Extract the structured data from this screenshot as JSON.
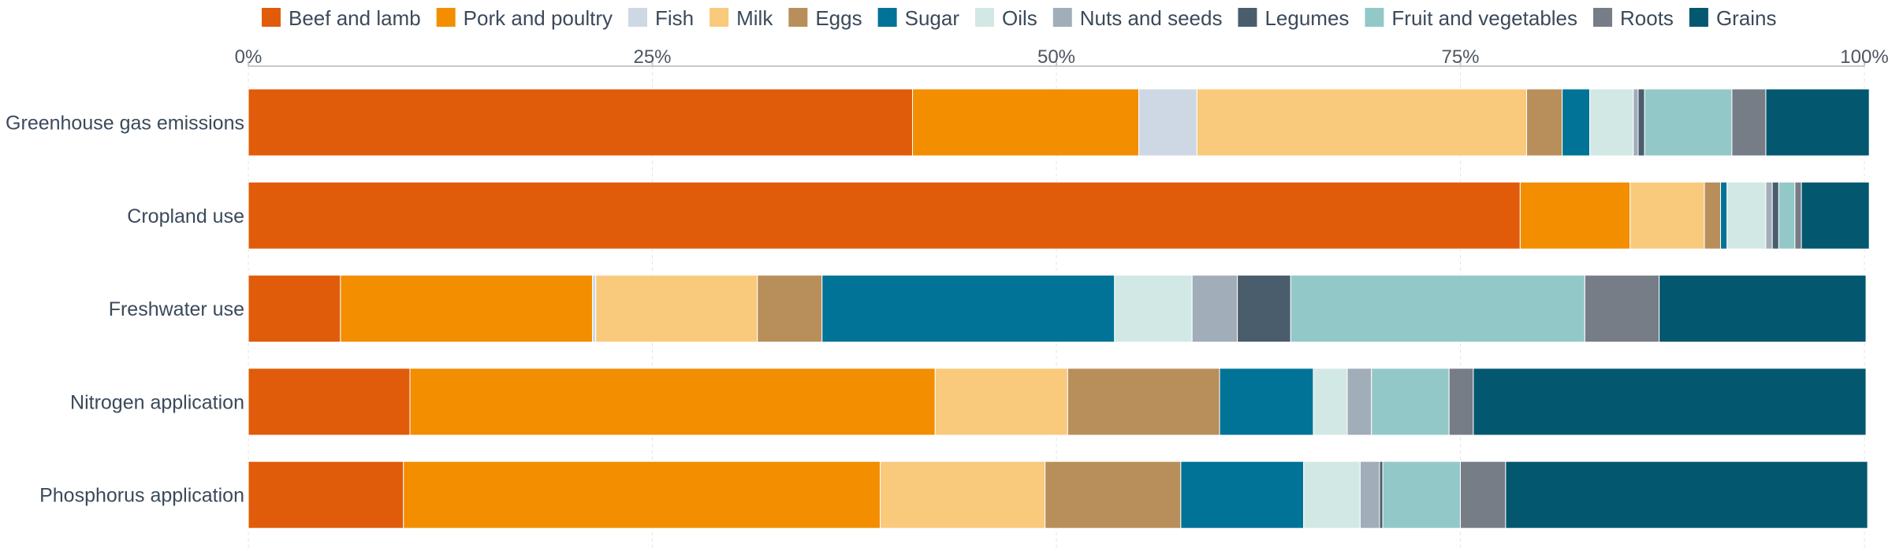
{
  "chart_data": {
    "type": "bar",
    "orientation": "horizontal",
    "stacked": true,
    "title": "",
    "xlabel": "",
    "ylabel": "",
    "xlim": [
      0,
      100
    ],
    "x_ticks": [
      "0%",
      "25%",
      "50%",
      "75%",
      "100%"
    ],
    "x_tick_values": [
      0,
      25,
      50,
      75,
      100
    ],
    "grid": true,
    "legend_position": "top",
    "categories": [
      "Greenhouse gas emissions",
      "Cropland use",
      "Freshwater use",
      "Nitrogen application",
      "Phosphorus application"
    ],
    "series": [
      {
        "name": "Beef and lamb",
        "color": "#e05c0a",
        "values": [
          41.1,
          78.7,
          5.7,
          10.0,
          9.6
        ]
      },
      {
        "name": "Pork and poultry",
        "color": "#f28e00",
        "values": [
          14.0,
          6.8,
          15.6,
          32.5,
          29.5
        ]
      },
      {
        "name": "Fish",
        "color": "#cdd8e4",
        "values": [
          3.6,
          0.0,
          0.2,
          0.0,
          0.0
        ]
      },
      {
        "name": "Milk",
        "color": "#f9c97c",
        "values": [
          20.4,
          4.6,
          10.0,
          8.2,
          10.2
        ]
      },
      {
        "name": "Eggs",
        "color": "#b88f5a",
        "values": [
          2.2,
          1.0,
          4.0,
          9.4,
          8.4
        ]
      },
      {
        "name": "Sugar",
        "color": "#007396",
        "values": [
          1.7,
          0.4,
          18.1,
          5.8,
          7.6
        ]
      },
      {
        "name": "Oils",
        "color": "#d2e8e5",
        "values": [
          2.7,
          2.4,
          4.8,
          2.1,
          3.5
        ]
      },
      {
        "name": "Nuts and seeds",
        "color": "#a1adb8",
        "values": [
          0.3,
          0.4,
          2.8,
          1.5,
          1.2
        ]
      },
      {
        "name": "Legumes",
        "color": "#4a5d6d",
        "values": [
          0.4,
          0.4,
          3.3,
          0.0,
          0.2
        ]
      },
      {
        "name": "Fruit and vegetables",
        "color": "#93c8c8",
        "values": [
          5.4,
          1.0,
          18.2,
          4.8,
          4.8
        ]
      },
      {
        "name": "Roots",
        "color": "#777d86",
        "values": [
          2.1,
          0.4,
          4.6,
          1.5,
          2.8
        ]
      },
      {
        "name": "Grains",
        "color": "#035870",
        "values": [
          6.4,
          4.2,
          12.8,
          24.3,
          22.4
        ]
      }
    ]
  }
}
